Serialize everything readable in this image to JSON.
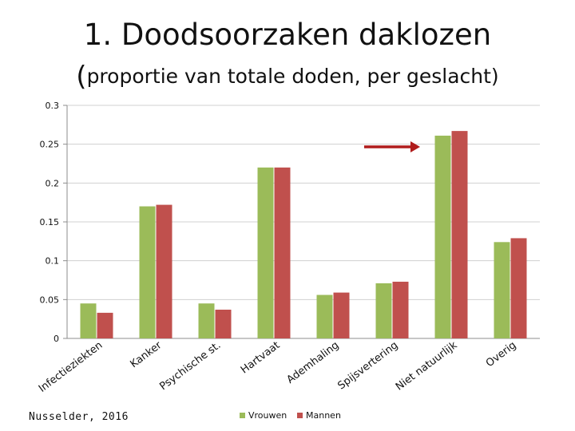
{
  "title": "1. Doodsoorzaken daklozen",
  "subtitle_paren": "(",
  "subtitle_text": "proportie van totale doden, per geslacht)",
  "source": "Nusselder, 2016",
  "colors": {
    "vrouwen": "#9bbb59",
    "mannen": "#c0504d",
    "arrow": "#b01c1c",
    "grid": "#d0d0d0",
    "axis": "#8c8c8c"
  },
  "chart_data": {
    "type": "bar",
    "title": "1. Doodsoorzaken daklozen",
    "subtitle": "(proportie van totale doden, per geslacht)",
    "categories": [
      "Infectieziekten",
      "Kanker",
      "Psychische st.",
      "Hartvaat",
      "Ademhaling",
      "Spijsvertering",
      "Niet natuurlijk",
      "Overig"
    ],
    "series": [
      {
        "name": "Vrouwen",
        "values": [
          0.045,
          0.17,
          0.045,
          0.22,
          0.056,
          0.071,
          0.261,
          0.124
        ]
      },
      {
        "name": "Mannen",
        "values": [
          0.033,
          0.172,
          0.037,
          0.22,
          0.059,
          0.073,
          0.267,
          0.129
        ]
      }
    ],
    "ylim": [
      0,
      0.3
    ],
    "yticks": [
      "0",
      "0.05",
      "0.1",
      "0.15",
      "0.2",
      "0.25",
      "0.3"
    ],
    "ytick_values": [
      0,
      0.05,
      0.1,
      0.15,
      0.2,
      0.25,
      0.3
    ],
    "grid": true,
    "legend_position": "bottom",
    "annotation": "red arrow pointing to Niet natuurlijk",
    "xlabel": "",
    "ylabel": ""
  }
}
